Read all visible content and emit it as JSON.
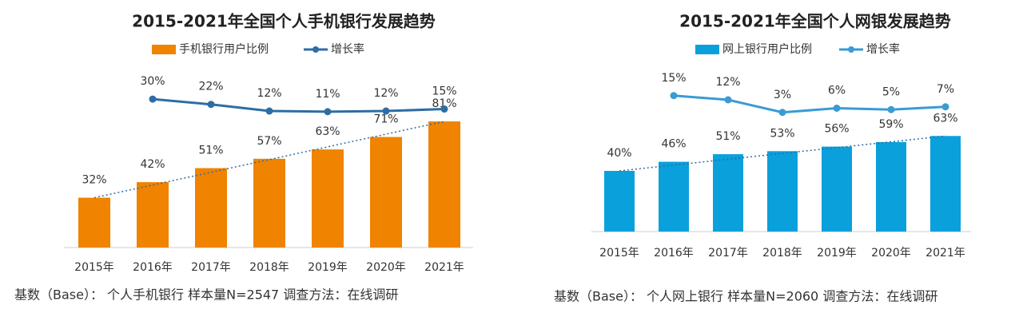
{
  "chart_data": [
    {
      "type": "bar",
      "title": "2015-2021年全国个人手机银行发展趋势",
      "categories": [
        "2015年",
        "2016年",
        "2017年",
        "2018年",
        "2019年",
        "2020年",
        "2021年"
      ],
      "series": [
        {
          "name": "手机银行用户比例",
          "type": "bar",
          "color": "#f08300",
          "values": [
            32,
            42,
            51,
            57,
            63,
            71,
            81
          ],
          "value_labels": [
            "32%",
            "42%",
            "51%",
            "57%",
            "63%",
            "71%",
            "81%"
          ]
        },
        {
          "name": "增长率",
          "type": "line",
          "axis": "y2",
          "color": "#2e6da4",
          "values": [
            null,
            30,
            22,
            12,
            11,
            12,
            15
          ],
          "value_labels": [
            null,
            "30%",
            "22%",
            "12%",
            "11%",
            "12%",
            "15%"
          ]
        }
      ],
      "note": "基数（Base）： 个人手机银行  样本量N=2547  调查方法：在线调研"
    },
    {
      "type": "bar",
      "title": "2015-2021年全国个人网银发展趋势",
      "categories": [
        "2015年",
        "2016年",
        "2017年",
        "2018年",
        "2019年",
        "2020年",
        "2021年"
      ],
      "series": [
        {
          "name": "网上银行用户比例",
          "type": "bar",
          "color": "#0aa0dc",
          "values": [
            40,
            46,
            51,
            53,
            56,
            59,
            63
          ],
          "value_labels": [
            "40%",
            "46%",
            "51%",
            "53%",
            "56%",
            "59%",
            "63%"
          ]
        },
        {
          "name": "增长率",
          "type": "line",
          "axis": "y2",
          "color": "#3a9bd5",
          "values": [
            null,
            15,
            12,
            3,
            6,
            5,
            7
          ],
          "value_labels": [
            null,
            "15%",
            "12%",
            "3%",
            "6%",
            "5%",
            "7%"
          ]
        }
      ],
      "note": "基数（Base）： 个人网上银行  样本量N=2060  调查方法：在线调研"
    }
  ]
}
